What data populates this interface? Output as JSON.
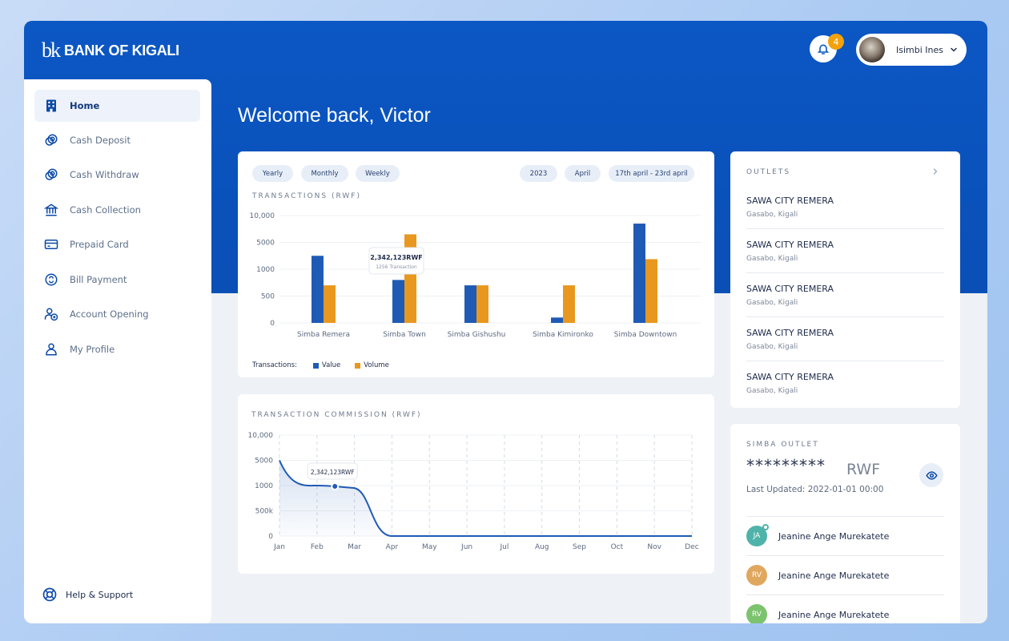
{
  "brand": {
    "mark": "bk",
    "name": "BANK OF KIGALI"
  },
  "header": {
    "notifications_count": "4",
    "user_name": "Isimbi Ines"
  },
  "sidebar": {
    "items": [
      {
        "label": "Home",
        "icon": "building-icon",
        "active": true
      },
      {
        "label": "Cash Deposit",
        "icon": "coins-icon"
      },
      {
        "label": "Cash Withdraw",
        "icon": "coins-icon"
      },
      {
        "label": "Cash Collection",
        "icon": "bank-icon"
      },
      {
        "label": "Prepaid Card",
        "icon": "card-icon"
      },
      {
        "label": "Bill Payment",
        "icon": "bill-icon"
      },
      {
        "label": "Account Opening",
        "icon": "person-add-icon"
      },
      {
        "label": "My Profile",
        "icon": "person-icon"
      }
    ],
    "help_label": "Help & Support"
  },
  "welcome": "Welcome back, Victor",
  "transactions": {
    "filters": {
      "yearly": "Yearly",
      "monthly": "Monthly",
      "weekly": "Weekly"
    },
    "period": {
      "year": "2023",
      "month": "April",
      "range": "17th april - 23rd april"
    },
    "title": "TRANSACTIONS (RWF)",
    "legend_label": "Transactions:"
  },
  "commission": {
    "title": "TRANSACTION COMMISSION (RWF)"
  },
  "chart_data": [
    {
      "type": "bar",
      "title": "TRANSACTIONS (RWF)",
      "categories": [
        "Simba Remera",
        "Simba Town",
        "Simba Gishushu",
        "Simba Kimironko",
        "Simba Downtown"
      ],
      "yticks": [
        "10,000",
        "5000",
        "1000",
        "500",
        "0"
      ],
      "series": [
        {
          "name": "Value",
          "color": "#1f5bb5",
          "values": [
            3000,
            800,
            700,
            100,
            8500
          ]
        },
        {
          "name": "Volume",
          "color": "#e8981f",
          "values": [
            700,
            6500,
            700,
            700,
            2500
          ]
        }
      ],
      "tooltip": {
        "category": "Simba Town",
        "value": "2,342,123RWF",
        "sub": "1256 Transaction"
      },
      "legend": "bottom-left",
      "grid": true
    },
    {
      "type": "area",
      "title": "TRANSACTION COMMISSION (RWF)",
      "x": [
        "Jan",
        "Feb",
        "Mar",
        "Apr",
        "May",
        "Jun",
        "Jul",
        "Aug",
        "Sep",
        "Oct",
        "Nov",
        "Dec"
      ],
      "yticks": [
        "10,000",
        "5000",
        "1000",
        "500k",
        "0"
      ],
      "series": [
        {
          "name": "",
          "color": "#1f5bb5",
          "values": [
            5000,
            1000,
            950,
            0,
            0,
            0,
            0,
            0,
            0,
            0,
            0,
            0
          ]
        }
      ],
      "tooltip": {
        "x": "Feb",
        "value": "2,342,123RWF"
      },
      "grid": true
    }
  ],
  "outlets": {
    "title": "OUTLETS",
    "items": [
      {
        "name": "SAWA CITY REMERA",
        "location": "Gasabo, Kigali"
      },
      {
        "name": "SAWA CITY REMERA",
        "location": "Gasabo, Kigali"
      },
      {
        "name": "SAWA CITY REMERA",
        "location": "Gasabo, Kigali"
      },
      {
        "name": "SAWA CITY REMERA",
        "location": "Gasabo, Kigali"
      },
      {
        "name": "SAWA CITY REMERA",
        "location": "Gasabo, Kigali"
      }
    ]
  },
  "simba_outlet": {
    "title": "SIMBA OUTLET",
    "balance_masked": "*********",
    "currency": "RWF",
    "last_updated": "Last Updated: 2022-01-01 00:00",
    "people": [
      {
        "initials": "JA",
        "name": "Jeanine Ange Murekatete",
        "color": "#4fb3a9",
        "online": true
      },
      {
        "initials": "RV",
        "name": "Jeanine Ange Murekatete",
        "color": "#e0a75e"
      },
      {
        "initials": "RV",
        "name": "Jeanine Ange Murekatete",
        "color": "#7cc36e"
      }
    ]
  }
}
